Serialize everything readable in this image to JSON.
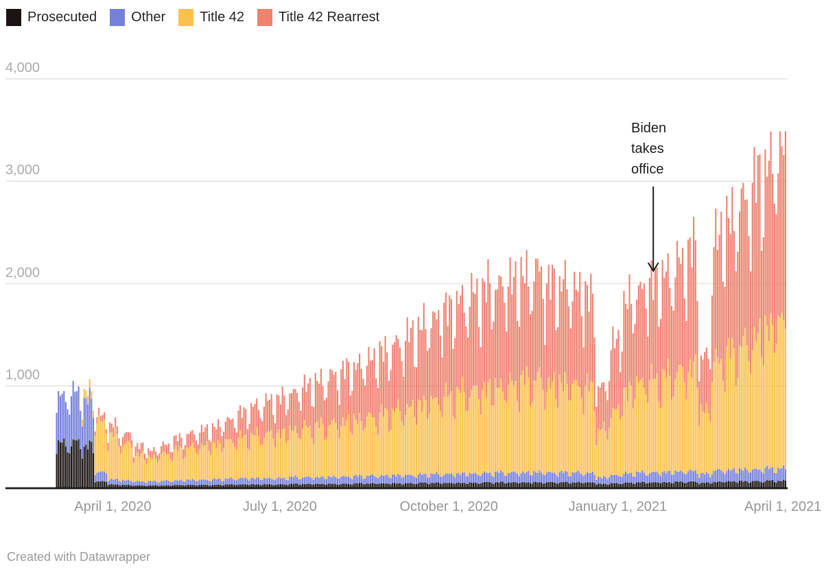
{
  "footer": {
    "text": "Created with Datawrapper"
  },
  "annotation": {
    "lines": [
      "Biden",
      "takes",
      "office"
    ],
    "date": "2021-01-20"
  },
  "colors": {
    "background": "#ffffff",
    "gridline": "#e8e8e8",
    "baseline": "#1c1c1c",
    "axis_text": "#9b9b9b",
    "annotation_text": "#1c1c1c"
  },
  "chart_data": {
    "type": "bar",
    "subtype": "stacked-daily-bars",
    "title": "",
    "grid": true,
    "legend_position": "top-left",
    "ylim": [
      0,
      4000
    ],
    "start_date": "2020-03-01",
    "end_date": "2021-04-02",
    "y_ticks": [
      {
        "value": 1000,
        "label": "1,000"
      },
      {
        "value": 2000,
        "label": "2,000"
      },
      {
        "value": 3000,
        "label": "3,000"
      },
      {
        "value": 4000,
        "label": "4,000"
      }
    ],
    "x_ticks": [
      {
        "date": "2020-04-01",
        "label": "April 1, 2020"
      },
      {
        "date": "2020-07-01",
        "label": "July 1, 2020"
      },
      {
        "date": "2020-10-01",
        "label": "October 1, 2020"
      },
      {
        "date": "2021-01-01",
        "label": "January 1, 2021"
      },
      {
        "date": "2021-04-01",
        "label": "April 1, 2021"
      }
    ],
    "stack_order_bottom_to_top": [
      "Prosecuted",
      "Other",
      "Title 42",
      "Title 42 Rearrest"
    ],
    "annotation": {
      "text": "Biden takes office",
      "date": "2021-01-20",
      "arrow_points_to_value": 2150
    },
    "week_start_dates": [
      "2020-03-01",
      "2020-03-08",
      "2020-03-15",
      "2020-03-22",
      "2020-03-29",
      "2020-04-05",
      "2020-04-12",
      "2020-04-19",
      "2020-04-26",
      "2020-05-03",
      "2020-05-10",
      "2020-05-17",
      "2020-05-24",
      "2020-05-31",
      "2020-06-07",
      "2020-06-14",
      "2020-06-21",
      "2020-06-28",
      "2020-07-05",
      "2020-07-12",
      "2020-07-19",
      "2020-07-26",
      "2020-08-02",
      "2020-08-09",
      "2020-08-16",
      "2020-08-23",
      "2020-08-30",
      "2020-09-06",
      "2020-09-13",
      "2020-09-20",
      "2020-09-27",
      "2020-10-04",
      "2020-10-11",
      "2020-10-18",
      "2020-10-25",
      "2020-11-01",
      "2020-11-08",
      "2020-11-15",
      "2020-11-22",
      "2020-11-29",
      "2020-12-06",
      "2020-12-13",
      "2020-12-20",
      "2020-12-27",
      "2021-01-03",
      "2021-01-10",
      "2021-01-17",
      "2021-01-24",
      "2021-01-31",
      "2021-02-07",
      "2021-02-14",
      "2021-02-21",
      "2021-02-28",
      "2021-03-07",
      "2021-03-14",
      "2021-03-21",
      "2021-03-28"
    ],
    "weekday_factors": [
      0.78,
      1.02,
      1.06,
      1.0,
      1.08,
      1.04,
      0.85
    ],
    "series": [
      {
        "label": "Prosecuted",
        "color": "#1a1512",
        "weekly_values": [
          420,
          430,
          400,
          60,
          30,
          25,
          20,
          20,
          20,
          25,
          25,
          25,
          25,
          30,
          30,
          30,
          30,
          30,
          35,
          35,
          35,
          35,
          35,
          40,
          40,
          40,
          40,
          40,
          45,
          45,
          45,
          45,
          45,
          50,
          50,
          50,
          50,
          50,
          50,
          50,
          50,
          50,
          35,
          40,
          45,
          50,
          50,
          50,
          55,
          55,
          45,
          55,
          60,
          60,
          60,
          65,
          65
        ]
      },
      {
        "label": "Other",
        "color": "#7580db",
        "weekly_values": [
          460,
          480,
          430,
          90,
          50,
          45,
          40,
          40,
          45,
          45,
          50,
          50,
          55,
          55,
          60,
          60,
          60,
          60,
          65,
          65,
          65,
          70,
          70,
          70,
          75,
          75,
          80,
          80,
          80,
          85,
          85,
          90,
          90,
          90,
          95,
          95,
          95,
          100,
          95,
          95,
          95,
          90,
          65,
          80,
          90,
          95,
          95,
          100,
          100,
          105,
          85,
          110,
          110,
          115,
          115,
          120,
          120
        ]
      },
      {
        "label": "Title 42",
        "color": "#fbc14e",
        "weekly_values": [
          0,
          0,
          80,
          480,
          420,
          350,
          260,
          230,
          260,
          290,
          310,
          330,
          340,
          370,
          390,
          410,
          430,
          440,
          460,
          480,
          490,
          510,
          530,
          550,
          570,
          590,
          620,
          650,
          690,
          720,
          750,
          780,
          800,
          820,
          840,
          860,
          880,
          900,
          850,
          870,
          850,
          820,
          450,
          620,
          800,
          880,
          900,
          920,
          960,
          1000,
          620,
          1060,
          1120,
          1200,
          1280,
          1380,
          1450
        ]
      },
      {
        "label": "Title 42 Rearrest",
        "color": "#ee8170",
        "weekly_values": [
          0,
          0,
          0,
          60,
          90,
          90,
          80,
          70,
          85,
          110,
          130,
          150,
          170,
          200,
          240,
          280,
          310,
          330,
          360,
          400,
          430,
          460,
          490,
          520,
          560,
          600,
          640,
          690,
          740,
          790,
          840,
          880,
          920,
          950,
          970,
          990,
          1010,
          1030,
          950,
          960,
          930,
          890,
          410,
          640,
          850,
          890,
          940,
          980,
          1040,
          1120,
          520,
          1200,
          1280,
          1380,
          1480,
          1560,
          1640
        ]
      }
    ]
  }
}
